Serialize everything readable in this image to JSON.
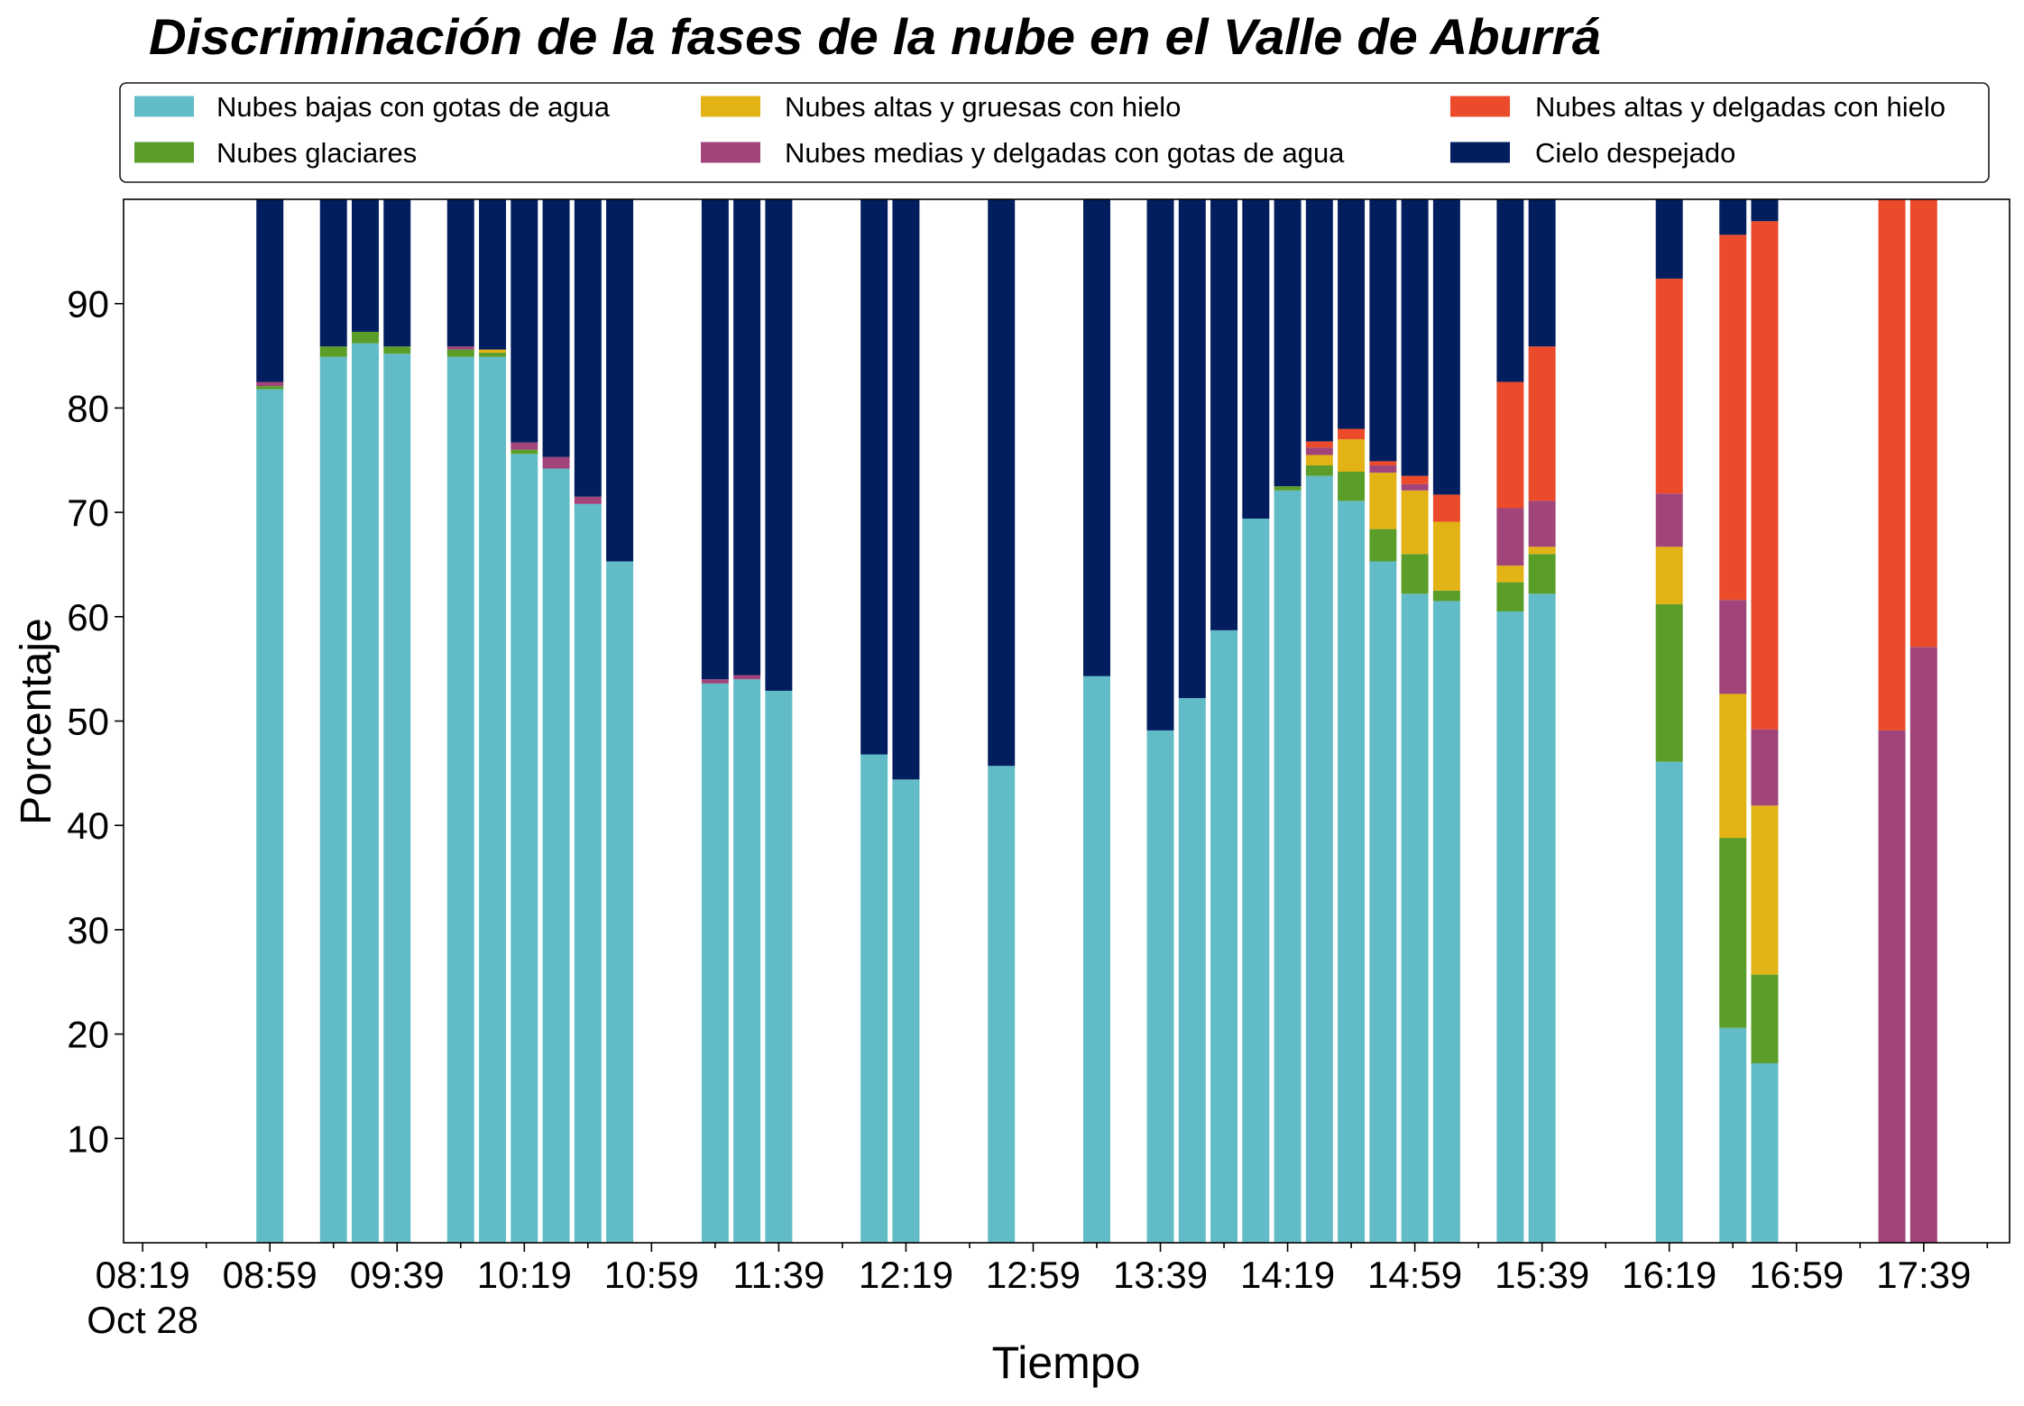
{
  "chart_data": {
    "type": "bar",
    "stacked": true,
    "title": "Discriminación de la fases de la nube en el Valle de Aburrá",
    "xlabel": "Tiempo",
    "ylabel": "Porcentaje",
    "x_date_label": "Oct 28",
    "x_tick_labels": [
      "08:19",
      "08:59",
      "09:39",
      "10:19",
      "10:59",
      "11:39",
      "12:19",
      "12:59",
      "13:39",
      "14:19",
      "14:59",
      "15:39",
      "16:19",
      "16:59",
      "17:39"
    ],
    "y_ticks": [
      10,
      20,
      30,
      40,
      50,
      60,
      70,
      80,
      90
    ],
    "xlim": [
      "08:13",
      "18:06"
    ],
    "ylim": [
      0,
      100
    ],
    "grid": false,
    "legend_placement": "top",
    "x": [
      "08:59",
      "09:19",
      "09:29",
      "09:39",
      "09:59",
      "10:09",
      "10:19",
      "10:29",
      "10:39",
      "10:49",
      "11:19",
      "11:29",
      "11:39",
      "12:09",
      "12:19",
      "12:49",
      "13:19",
      "13:39",
      "13:49",
      "13:59",
      "14:09",
      "14:19",
      "14:29",
      "14:39",
      "14:49",
      "14:59",
      "15:09",
      "15:29",
      "15:39",
      "16:19",
      "16:39",
      "16:49",
      "17:29",
      "17:39"
    ],
    "series": [
      {
        "name": "Nubes bajas con gotas de agua",
        "color": "#62BCC8",
        "values": [
          81.8,
          84.9,
          86.2,
          85.2,
          84.9,
          84.9,
          75.6,
          74.2,
          70.8,
          65.3,
          53.6,
          54.0,
          52.9,
          46.8,
          44.4,
          45.7,
          54.3,
          49.1,
          52.2,
          58.7,
          69.4,
          72.1,
          73.5,
          71.1,
          65.3,
          62.2,
          61.5,
          60.5,
          62.2,
          46.1,
          20.6,
          17.2,
          0,
          0
        ]
      },
      {
        "name": "Nubes glaciares",
        "color": "#5A9D29",
        "values": [
          0.3,
          1.0,
          1.1,
          0.7,
          0.7,
          0.4,
          0.4,
          0,
          0,
          0,
          0,
          0,
          0,
          0,
          0,
          0,
          0,
          0,
          0,
          0,
          0,
          0.4,
          1.0,
          2.8,
          3.1,
          3.8,
          1.0,
          2.8,
          3.8,
          15.1,
          18.2,
          8.5,
          0,
          0
        ]
      },
      {
        "name": "Nubes altas y gruesas con hielo",
        "color": "#E3B215",
        "values": [
          0,
          0,
          0,
          0,
          0,
          0.3,
          0,
          0,
          0,
          0,
          0,
          0,
          0,
          0,
          0,
          0,
          0,
          0,
          0,
          0,
          0,
          0,
          1.0,
          3.1,
          5.4,
          6.1,
          6.6,
          1.6,
          0.7,
          5.5,
          13.8,
          16.2,
          0,
          0
        ]
      },
      {
        "name": "Nubes medias y delgadas con gotas de agua",
        "color": "#A0447A",
        "values": [
          0.4,
          0,
          0,
          0,
          0.3,
          0,
          0.7,
          1.1,
          0.7,
          0,
          0.4,
          0.4,
          0,
          0,
          0,
          0,
          0,
          0,
          0,
          0,
          0,
          0,
          0.7,
          0,
          0.7,
          0.6,
          0,
          5.5,
          4.4,
          5.1,
          9.0,
          7.3,
          49.1,
          57.1
        ]
      },
      {
        "name": "Nubes altas y delgadas con hielo",
        "color": "#EB4A2B",
        "values": [
          0,
          0,
          0,
          0,
          0,
          0,
          0,
          0,
          0,
          0,
          0,
          0,
          0,
          0,
          0,
          0,
          0,
          0,
          0,
          0,
          0,
          0,
          0.6,
          1.0,
          0.4,
          0.8,
          2.6,
          12.1,
          14.8,
          20.6,
          35.0,
          48.7,
          50.9,
          42.9
        ]
      },
      {
        "name": "Cielo despejado",
        "color": "#021E5E",
        "values": [
          17.5,
          14.1,
          12.7,
          14.1,
          14.1,
          14.4,
          23.3,
          24.7,
          28.5,
          34.7,
          46.0,
          45.6,
          47.1,
          53.2,
          55.6,
          54.3,
          45.7,
          50.9,
          47.8,
          41.3,
          30.6,
          27.5,
          23.2,
          22.0,
          25.1,
          26.5,
          28.3,
          17.5,
          14.1,
          7.6,
          3.4,
          2.1,
          0,
          0
        ]
      }
    ]
  }
}
